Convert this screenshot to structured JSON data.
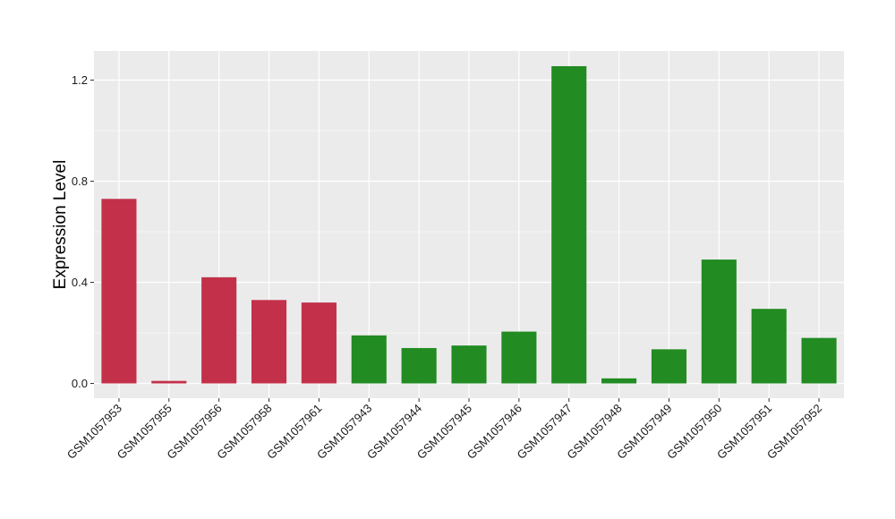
{
  "chart_data": {
    "type": "bar",
    "title": "",
    "xlabel": "",
    "ylabel": "Expression Level",
    "ylim": [
      -0.05,
      1.3
    ],
    "yticks": [
      0.0,
      0.4,
      0.8,
      1.2
    ],
    "ytick_labels": [
      "0.0",
      "0.4",
      "0.8",
      "1.2"
    ],
    "grid": true,
    "categories": [
      "GSM1057953",
      "GSM1057955",
      "GSM1057956",
      "GSM1057958",
      "GSM1057961",
      "GSM1057943",
      "GSM1057944",
      "GSM1057945",
      "GSM1057946",
      "GSM1057947",
      "GSM1057948",
      "GSM1057949",
      "GSM1057950",
      "GSM1057951",
      "GSM1057952"
    ],
    "values": [
      0.73,
      0.01,
      0.42,
      0.33,
      0.32,
      0.19,
      0.14,
      0.15,
      0.205,
      1.255,
      0.02,
      0.135,
      0.49,
      0.295,
      0.18
    ],
    "groups": [
      "red",
      "red",
      "red",
      "red",
      "red",
      "green",
      "green",
      "green",
      "green",
      "green",
      "green",
      "green",
      "green",
      "green",
      "green"
    ],
    "colors": {
      "red": "#c3304a",
      "green": "#228b22",
      "panel": "#ebebeb",
      "grid": "#ffffff"
    }
  }
}
